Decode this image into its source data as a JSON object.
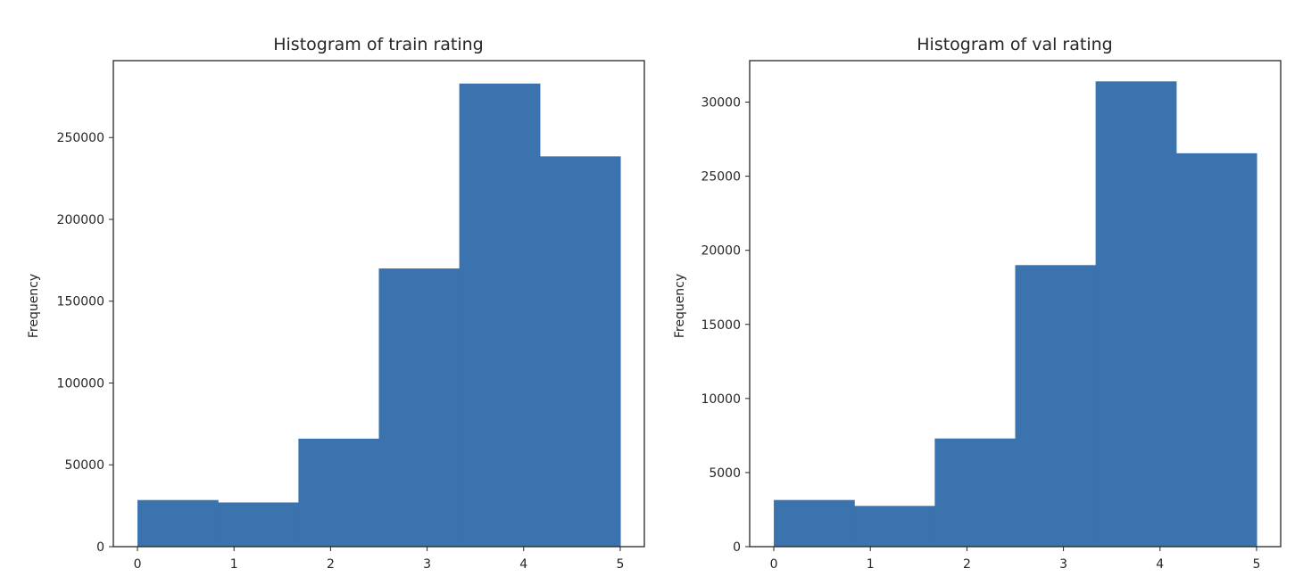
{
  "chart_data": [
    {
      "type": "bar",
      "title": "Histogram of train rating",
      "xlabel": "",
      "ylabel": "Frequency",
      "bin_edges": [
        0,
        0.833,
        1.667,
        2.5,
        3.333,
        4.167,
        5
      ],
      "values": [
        28500,
        27000,
        66000,
        170000,
        283000,
        238500
      ],
      "xlim": [
        -0.25,
        5.25
      ],
      "ylim": [
        0,
        297000
      ],
      "xticks": [
        "0",
        "1",
        "2",
        "3",
        "4",
        "5"
      ],
      "yticks": [
        "0",
        "50000",
        "100000",
        "150000",
        "200000",
        "250000"
      ],
      "bar_color": "#3a73ad",
      "grid": false,
      "legend": "none"
    },
    {
      "type": "bar",
      "title": "Histogram of val rating",
      "xlabel": "",
      "ylabel": "Frequency",
      "bin_edges": [
        0,
        0.833,
        1.667,
        2.5,
        3.333,
        4.167,
        5
      ],
      "values": [
        3150,
        2750,
        7300,
        19000,
        31400,
        26550
      ],
      "xlim": [
        -0.25,
        5.25
      ],
      "ylim": [
        0,
        32800
      ],
      "xticks": [
        "0",
        "1",
        "2",
        "3",
        "4",
        "5"
      ],
      "yticks": [
        "0",
        "5000",
        "10000",
        "15000",
        "20000",
        "25000",
        "30000"
      ],
      "bar_color": "#3a73ad",
      "grid": false,
      "legend": "none"
    }
  ]
}
